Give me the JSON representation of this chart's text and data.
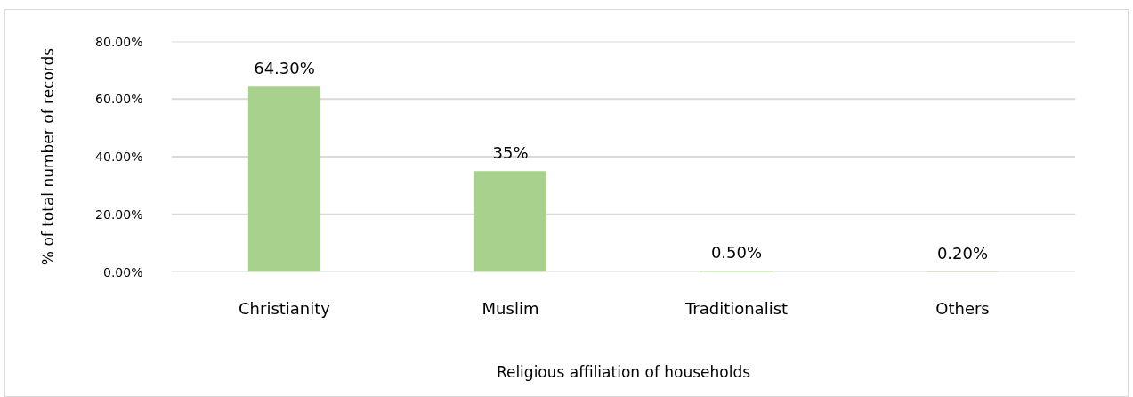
{
  "chart_data": {
    "type": "bar",
    "categories": [
      "Christianity",
      "Muslim",
      "Traditionalist",
      "Others"
    ],
    "values": [
      64.3,
      35,
      0.5,
      0.2
    ],
    "color": "#a9d18e",
    "value_labels": [
      "64.30%",
      "35%",
      "0.50%",
      "0.20%"
    ],
    "xlabel": "Religious affiliation of households",
    "ylabel": "% of total number of records",
    "ylim": [
      0,
      80
    ],
    "yticks": [
      {
        "value": 0,
        "label": "0.00%"
      },
      {
        "value": 20,
        "label": "20.00%"
      },
      {
        "value": 40,
        "label": "40.00%"
      },
      {
        "value": 60,
        "label": "60.00%"
      },
      {
        "value": 80,
        "label": "80.00%"
      }
    ],
    "grid": "y"
  }
}
